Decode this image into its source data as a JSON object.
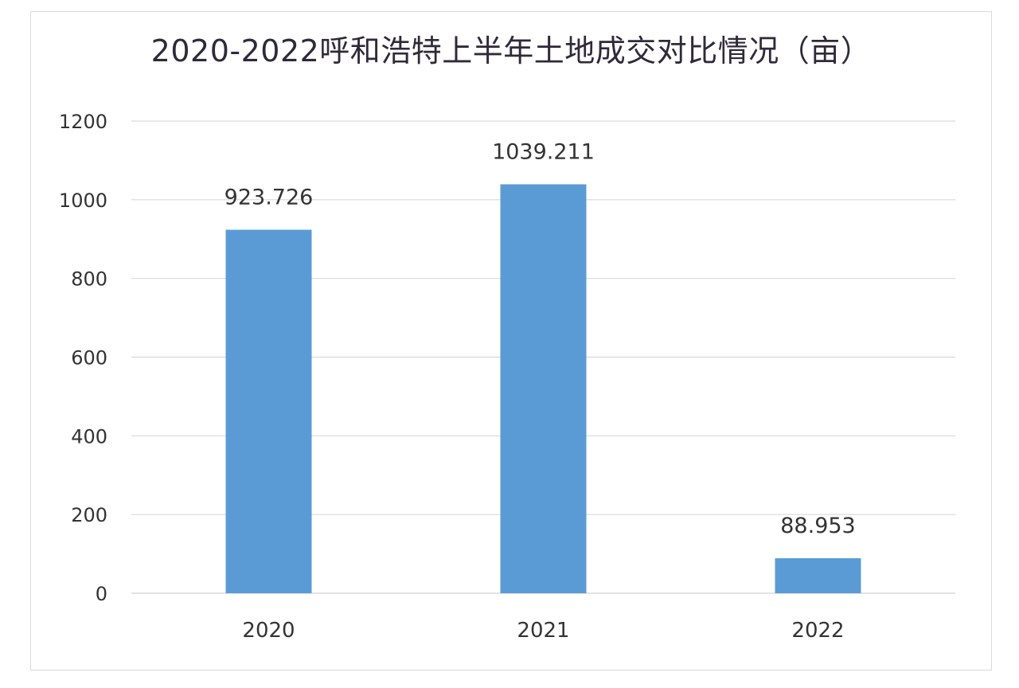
{
  "chart_data": {
    "type": "bar",
    "title": "2020-2022呼和浩特上半年土地成交对比情况（亩）",
    "categories": [
      "2020",
      "2021",
      "2022"
    ],
    "values": [
      923.726,
      1039.211,
      88.953
    ],
    "value_labels": [
      "923.726",
      "1039.211",
      "88.953"
    ],
    "ylim": [
      0,
      1200
    ],
    "yticks": [
      0,
      200,
      400,
      600,
      800,
      1000,
      1200
    ],
    "grid": true,
    "legend": "none",
    "bar_color": "#5b9bd5",
    "grid_color": "#d9d9d9"
  }
}
